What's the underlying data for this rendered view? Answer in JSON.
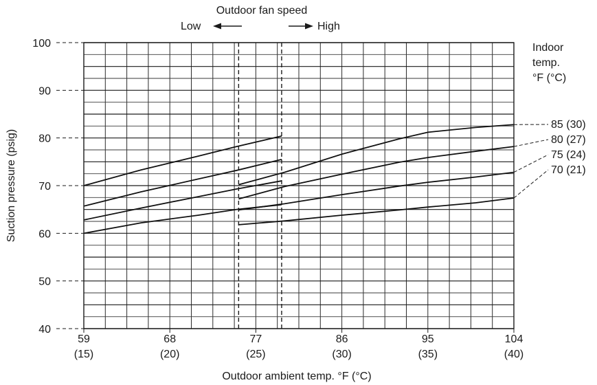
{
  "chart_data": {
    "type": "line",
    "title": "",
    "xlabel": "Outdoor ambient temp. °F (°C)",
    "ylabel": "Suction pressure (psig)",
    "xlim": [
      59,
      104
    ],
    "ylim": [
      40,
      100
    ],
    "x_ticks": [
      {
        "value": 59,
        "label": "59",
        "sublabel": "(15)"
      },
      {
        "value": 68,
        "label": "68",
        "sublabel": "(20)"
      },
      {
        "value": 77,
        "label": "77",
        "sublabel": "(25)"
      },
      {
        "value": 86,
        "label": "86",
        "sublabel": "(30)"
      },
      {
        "value": 95,
        "label": "95",
        "sublabel": "(35)"
      },
      {
        "value": 104,
        "label": "104",
        "sublabel": "(40)"
      }
    ],
    "y_ticks": [
      {
        "value": 40,
        "label": "40"
      },
      {
        "value": 50,
        "label": "50"
      },
      {
        "value": 60,
        "label": "60"
      },
      {
        "value": 70,
        "label": "70"
      },
      {
        "value": 80,
        "label": "80"
      },
      {
        "value": 90,
        "label": "90"
      },
      {
        "value": 100,
        "label": "100"
      }
    ],
    "grid": true,
    "fan_speed": {
      "title": "Outdoor fan speed",
      "low_label": "Low",
      "high_label": "High",
      "boundaries": [
        75.2,
        79.7
      ]
    },
    "legend": {
      "title_lines": [
        "Indoor",
        "temp.",
        "°F (°C)"
      ],
      "placement": "right"
    },
    "series": [
      {
        "name": "85 (30)",
        "low": {
          "x": [
            59,
            65,
            71,
            75,
            79.7
          ],
          "y": [
            70,
            73.3,
            76.2,
            78.2,
            80.4
          ]
        },
        "high": {
          "x": [
            75.2,
            80,
            86,
            92,
            95,
            100,
            104
          ],
          "y": [
            70.2,
            72.8,
            76.6,
            79.8,
            81.2,
            82.2,
            82.8
          ]
        }
      },
      {
        "name": "80 (27)",
        "low": {
          "x": [
            59,
            65,
            71,
            75,
            79.7
          ],
          "y": [
            65.7,
            68.7,
            71.4,
            73.2,
            75.5
          ]
        },
        "high": {
          "x": [
            75.2,
            80,
            86,
            92,
            95,
            100,
            104
          ],
          "y": [
            67.2,
            69.8,
            72.4,
            74.9,
            75.9,
            77.2,
            78.2
          ]
        }
      },
      {
        "name": "75 (24)",
        "low": {
          "x": [
            59,
            65,
            71,
            75,
            79.7
          ],
          "y": [
            62.8,
            65.3,
            67.7,
            69.3,
            71
          ]
        },
        "high": {
          "x": [
            75.2,
            80,
            86,
            92,
            95,
            100,
            104
          ],
          "y": [
            64.9,
            66.2,
            68.1,
            69.9,
            70.7,
            71.8,
            72.8
          ]
        }
      },
      {
        "name": "70 (21)",
        "low": {
          "x": [
            59,
            65,
            71,
            75,
            79.7
          ],
          "y": [
            60,
            62.2,
            63.8,
            65,
            66
          ]
        },
        "high": {
          "x": [
            75.2,
            80,
            86,
            92,
            95,
            100,
            104
          ],
          "y": [
            61.8,
            62.6,
            63.8,
            64.9,
            65.5,
            66.4,
            67.4
          ]
        }
      }
    ],
    "label_positions_note": "series labels sit to the right of the plot, connected by dashed leaders"
  }
}
